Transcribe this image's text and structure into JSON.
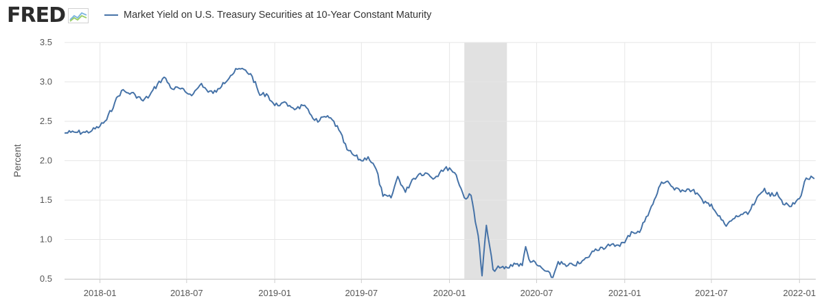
{
  "header": {
    "brand": "FRED",
    "brand_icon": "fred-chart-logo-icon",
    "legend_label": "Market Yield on U.S. Treasury Securities at 10-Year Constant Maturity"
  },
  "colors": {
    "series": "#4572a7",
    "recession": "#e1e1e1",
    "grid": "#e6e6e6",
    "axis_text": "#555555"
  },
  "chart_data": {
    "type": "line",
    "title": "",
    "xlabel": "",
    "ylabel": "Percent",
    "ylim": [
      0.5,
      3.5
    ],
    "yticks": [
      "0.5",
      "1.0",
      "1.5",
      "2.0",
      "2.5",
      "3.0",
      "3.5"
    ],
    "xlim": [
      "2017-10-19",
      "2022-02-04"
    ],
    "xticks": [
      "2018-01",
      "2018-07",
      "2019-01",
      "2019-07",
      "2020-01",
      "2020-07",
      "2021-01",
      "2021-07",
      "2022-01"
    ],
    "grid": true,
    "legend": "top-left",
    "recession_shading": [
      {
        "start": "2020-02-01",
        "end": "2020-04-30"
      }
    ],
    "series": [
      {
        "name": "Market Yield on U.S. Treasury Securities at 10-Year Constant Maturity",
        "x": [
          "2017-10-19",
          "2017-11-01",
          "2017-11-15",
          "2017-12-01",
          "2017-12-15",
          "2018-01-01",
          "2018-01-15",
          "2018-02-01",
          "2018-02-15",
          "2018-03-01",
          "2018-03-15",
          "2018-04-01",
          "2018-04-15",
          "2018-05-01",
          "2018-05-15",
          "2018-06-01",
          "2018-06-15",
          "2018-07-01",
          "2018-07-15",
          "2018-08-01",
          "2018-08-15",
          "2018-09-01",
          "2018-09-15",
          "2018-10-01",
          "2018-10-15",
          "2018-11-01",
          "2018-11-15",
          "2018-12-01",
          "2018-12-15",
          "2019-01-01",
          "2019-01-15",
          "2019-02-01",
          "2019-02-15",
          "2019-03-01",
          "2019-03-15",
          "2019-04-01",
          "2019-04-15",
          "2019-05-01",
          "2019-05-15",
          "2019-06-01",
          "2019-06-15",
          "2019-07-01",
          "2019-07-15",
          "2019-08-01",
          "2019-08-15",
          "2019-09-01",
          "2019-09-15",
          "2019-10-01",
          "2019-10-15",
          "2019-11-01",
          "2019-11-15",
          "2019-12-01",
          "2019-12-15",
          "2020-01-01",
          "2020-01-15",
          "2020-02-01",
          "2020-02-15",
          "2020-03-01",
          "2020-03-09",
          "2020-03-18",
          "2020-04-01",
          "2020-04-15",
          "2020-05-01",
          "2020-05-15",
          "2020-06-01",
          "2020-06-08",
          "2020-06-15",
          "2020-07-01",
          "2020-07-15",
          "2020-08-04",
          "2020-08-15",
          "2020-09-01",
          "2020-09-15",
          "2020-10-01",
          "2020-10-15",
          "2020-11-01",
          "2020-11-15",
          "2020-12-01",
          "2020-12-15",
          "2021-01-01",
          "2021-01-15",
          "2021-02-01",
          "2021-02-15",
          "2021-03-01",
          "2021-03-19",
          "2021-04-01",
          "2021-04-15",
          "2021-05-01",
          "2021-05-15",
          "2021-06-01",
          "2021-06-15",
          "2021-07-01",
          "2021-07-15",
          "2021-08-01",
          "2021-08-15",
          "2021-09-01",
          "2021-09-15",
          "2021-10-01",
          "2021-10-20",
          "2021-11-01",
          "2021-11-15",
          "2021-12-01",
          "2021-12-15",
          "2022-01-01",
          "2022-01-15",
          "2022-02-01"
        ],
        "values": [
          2.35,
          2.36,
          2.36,
          2.36,
          2.38,
          2.44,
          2.52,
          2.74,
          2.89,
          2.86,
          2.84,
          2.76,
          2.83,
          2.97,
          3.06,
          2.91,
          2.92,
          2.86,
          2.85,
          2.98,
          2.87,
          2.87,
          2.99,
          3.08,
          3.16,
          3.15,
          3.07,
          2.83,
          2.85,
          2.7,
          2.73,
          2.7,
          2.66,
          2.7,
          2.6,
          2.49,
          2.56,
          2.52,
          2.39,
          2.14,
          2.07,
          2.0,
          2.05,
          1.89,
          1.55,
          1.53,
          1.8,
          1.6,
          1.76,
          1.84,
          1.84,
          1.78,
          1.88,
          1.91,
          1.82,
          1.53,
          1.56,
          1.05,
          0.54,
          1.18,
          0.62,
          0.64,
          0.64,
          0.7,
          0.67,
          0.91,
          0.75,
          0.68,
          0.62,
          0.52,
          0.72,
          0.66,
          0.68,
          0.7,
          0.77,
          0.88,
          0.9,
          0.92,
          0.93,
          0.96,
          1.1,
          1.09,
          1.29,
          1.45,
          1.73,
          1.74,
          1.63,
          1.63,
          1.64,
          1.59,
          1.46,
          1.45,
          1.3,
          1.17,
          1.26,
          1.32,
          1.32,
          1.48,
          1.65,
          1.55,
          1.6,
          1.44,
          1.42,
          1.52,
          1.78,
          1.77
        ]
      }
    ]
  }
}
